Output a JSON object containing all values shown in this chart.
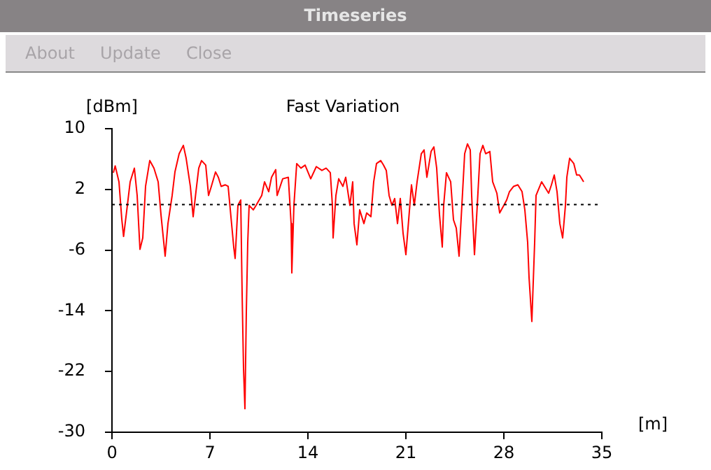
{
  "chart_data": {
    "type": "line",
    "title": "Fast Variation",
    "ylabel": "[dBm]",
    "xlabel": "[m]",
    "annotations": [
      "Timeseries",
      "About",
      "Update",
      "Close"
    ],
    "xlim": [
      0,
      35
    ],
    "xticks": [
      0,
      7,
      14,
      21,
      28,
      35
    ],
    "ylim": [
      -30,
      10
    ],
    "yticks": [
      -30,
      -22,
      -14,
      -6,
      2,
      10
    ],
    "grid": false,
    "legend": false,
    "marker": "none",
    "line_style": "solid",
    "ref_lines": [
      {
        "axis": "y",
        "value": 0,
        "color": "#000000",
        "line_style": "dotted"
      }
    ],
    "series": [
      {
        "color": "#ff0000",
        "x": [
          0.1,
          0.23,
          0.5,
          0.7,
          0.83,
          1.1,
          1.3,
          1.6,
          1.8,
          2.0,
          2.2,
          2.4,
          2.7,
          3.0,
          3.3,
          3.5,
          3.8,
          4.0,
          4.3,
          4.5,
          4.8,
          5.1,
          5.3,
          5.6,
          5.8,
          6.0,
          6.2,
          6.4,
          6.7,
          6.9,
          7.1,
          7.4,
          7.6,
          7.8,
          8.1,
          8.3,
          8.5,
          8.7,
          8.8,
          9.0,
          9.2,
          9.3,
          9.4,
          9.5,
          9.6,
          9.7,
          9.8,
          10.1,
          10.3,
          10.7,
          10.9,
          11.2,
          11.4,
          11.7,
          11.8,
          12.2,
          12.6,
          12.8,
          12.85,
          13.0,
          13.2,
          13.5,
          13.8,
          14.2,
          14.6,
          15.0,
          15.3,
          15.6,
          15.75,
          15.8,
          16.0,
          16.2,
          16.5,
          16.7,
          17.0,
          17.2,
          17.3,
          17.5,
          17.7,
          18.0,
          18.2,
          18.5,
          18.7,
          18.9,
          19.2,
          19.4,
          19.6,
          19.8,
          20.0,
          20.2,
          20.4,
          20.6,
          20.8,
          21.0,
          21.2,
          21.4,
          21.6,
          21.8,
          22.1,
          22.3,
          22.5,
          22.8,
          23.0,
          23.2,
          23.4,
          23.6,
          23.7,
          23.9,
          24.2,
          24.4,
          24.6,
          24.8,
          25.0,
          25.2,
          25.4,
          25.6,
          25.7,
          25.9,
          26.1,
          26.3,
          26.5,
          26.7,
          27.0,
          27.2,
          27.5,
          27.7,
          28.0,
          28.2,
          28.4,
          28.7,
          29.0,
          29.3,
          29.5,
          29.7,
          29.8,
          30.0,
          30.2,
          30.3,
          30.5,
          30.7,
          30.9,
          31.2,
          31.4,
          31.6,
          31.8,
          32.0,
          32.2,
          32.4,
          32.5,
          32.7,
          33.0,
          33.2,
          33.4,
          33.7
        ],
        "values": [
          4.2,
          5.1,
          3.0,
          -1.9,
          -4.2,
          -0.1,
          3.0,
          4.8,
          1.2,
          -5.9,
          -4.4,
          2.4,
          5.8,
          4.8,
          3.0,
          -1.3,
          -6.8,
          -2.5,
          1.2,
          4.3,
          6.7,
          7.8,
          6.1,
          2.4,
          -1.6,
          1.7,
          4.8,
          5.8,
          5.2,
          1.2,
          2.4,
          4.3,
          3.6,
          2.4,
          2.6,
          2.4,
          -1.6,
          -5.6,
          -7.1,
          -0.1,
          0.6,
          -11.8,
          -21.6,
          -26.9,
          -14.1,
          -5.0,
          -0.1,
          -0.7,
          -0.1,
          1.2,
          3.0,
          1.7,
          3.6,
          4.6,
          1.2,
          3.4,
          3.6,
          -2.5,
          -9.0,
          -0.1,
          5.4,
          4.8,
          5.2,
          3.4,
          5.0,
          4.5,
          4.8,
          4.2,
          -0.1,
          -4.4,
          1.2,
          3.4,
          2.4,
          3.6,
          -0.1,
          3.0,
          -2.5,
          -5.3,
          -0.7,
          -2.5,
          -1.1,
          -1.6,
          3.0,
          5.4,
          5.8,
          5.2,
          4.5,
          1.2,
          -0.1,
          0.8,
          -2.5,
          0.8,
          -3.8,
          -6.6,
          -2.0,
          2.6,
          -0.1,
          3.0,
          6.7,
          7.2,
          3.6,
          7.0,
          7.6,
          4.8,
          -1.3,
          -5.6,
          -0.1,
          4.2,
          3.0,
          -2.0,
          -3.1,
          -6.8,
          -0.1,
          6.7,
          8.0,
          7.2,
          1.2,
          -6.6,
          -0.1,
          6.7,
          7.8,
          6.7,
          7.0,
          3.0,
          1.5,
          -1.1,
          -0.1,
          0.6,
          1.7,
          2.4,
          2.6,
          1.7,
          -0.7,
          -5.0,
          -9.6,
          -15.4,
          -5.0,
          1.2,
          2.1,
          3.0,
          2.4,
          1.5,
          2.6,
          3.9,
          1.7,
          -2.5,
          -4.4,
          -0.1,
          3.6,
          6.1,
          5.4,
          3.9,
          3.9,
          3.0
        ]
      }
    ]
  }
}
